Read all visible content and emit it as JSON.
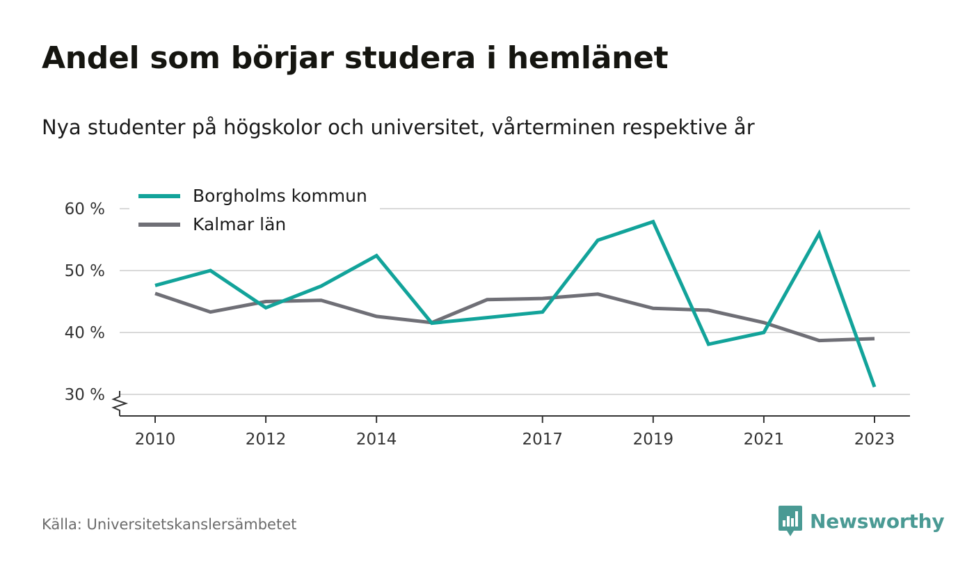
{
  "header": {
    "title": "Andel som börjar studera i hemlänet",
    "subtitle": "Nya studenter på högskolor och universitet, vårterminen respektive år"
  },
  "footer": {
    "source": "Källa: Universitetskanslersämbetet",
    "brand": "Newsworthy"
  },
  "colors": {
    "borgholm": "#12a39a",
    "kalmar": "#6f6f76",
    "grid": "#d9d9d9",
    "axis": "#333333",
    "brand": "#4a9a94"
  },
  "icons": {
    "brand_logo": "bar-chart-speech-bubble-icon",
    "axis_break": "axis-break-zigzag-icon"
  },
  "chart_data": {
    "type": "line",
    "title": "Andel som börjar studera i hemlänet",
    "subtitle": "Nya studenter på högskolor och universitet, vårterminen respektive år",
    "x": [
      2010,
      2011,
      2012,
      2013,
      2014,
      2015,
      2016,
      2017,
      2018,
      2019,
      2020,
      2021,
      2022,
      2023
    ],
    "x_ticks": [
      2010,
      2012,
      2014,
      2017,
      2019,
      2021,
      2023
    ],
    "y_ticks": [
      30,
      40,
      50,
      60
    ],
    "y_tick_suffix": " %",
    "ylim": [
      26.5,
      61
    ],
    "xlim": [
      2009.35,
      2024.3
    ],
    "grid": true,
    "axis_break": true,
    "legend_position": "top-left",
    "series": [
      {
        "name": "Borgholms kommun",
        "values": [
          47.6,
          50.0,
          44.0,
          47.5,
          52.4,
          41.5,
          42.4,
          43.3,
          54.9,
          57.9,
          38.1,
          40.0,
          56.0,
          31.2
        ]
      },
      {
        "name": "Kalmar län",
        "values": [
          46.3,
          43.3,
          45.0,
          45.2,
          42.6,
          41.6,
          45.3,
          45.5,
          46.2,
          43.9,
          43.6,
          41.6,
          38.7,
          39.0
        ]
      }
    ]
  }
}
